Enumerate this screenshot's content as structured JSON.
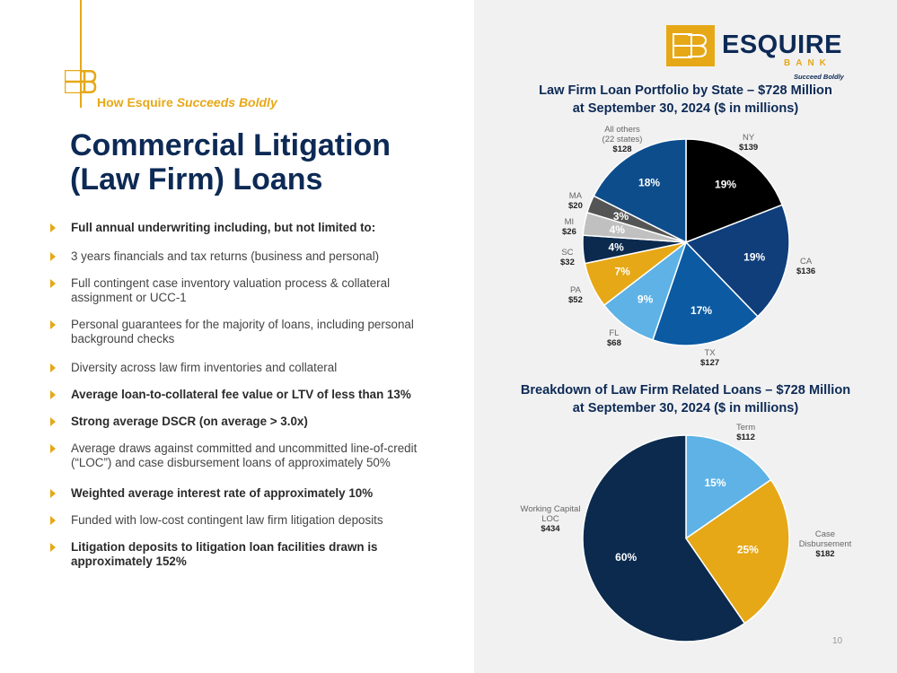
{
  "header": {
    "tagline_plain": "How Esquire ",
    "tagline_italic": "Succeeds Boldly",
    "title_line1": "Commercial Litigation",
    "title_line2": "(Law Firm) Loans"
  },
  "bullets": [
    {
      "text": "Full annual underwriting including, but not limited to:",
      "bold": true
    },
    {
      "text": "3 years financials and tax returns (business and personal)",
      "bold": false
    },
    {
      "text": "Full contingent case inventory valuation process & collateral assignment or UCC-1",
      "bold": false
    },
    {
      "text": "Personal guarantees for the majority of loans, including personal background checks",
      "bold": false
    },
    {
      "text": "Diversity across law firm inventories and collateral",
      "bold": false
    },
    {
      "text": "Average loan-to-collateral fee value or LTV of less than 13%",
      "bold": true
    },
    {
      "text": "Strong average DSCR (on average > 3.0x)",
      "bold": true
    },
    {
      "text": "Average draws against committed and uncommitted line-of-credit (“LOC”) and case disbursement loans of approximately 50%",
      "bold": false
    },
    {
      "text": "Weighted average interest rate of approximately 10%",
      "bold": true
    },
    {
      "text": "Funded with low-cost contingent law firm litigation deposits",
      "bold": false
    },
    {
      "text": "Litigation deposits to litigation loan facilities drawn is approximately 152%",
      "bold": true
    }
  ],
  "logo": {
    "name": "ESQUIRE",
    "sub": "BANK",
    "tagline": "Succeed Boldly"
  },
  "page_number": "10",
  "colors": {
    "navy": "#0d2a55",
    "gold": "#e6a817"
  },
  "chart_data": [
    {
      "type": "pie",
      "title_line1": "Law Firm Loan Portfolio by State – $728 Million",
      "title_line2": "at September 30, 2024 ($ in millions)",
      "slices": [
        {
          "label": "NY",
          "value": 139,
          "value_label": "$139",
          "pct_label": "19%",
          "color": "#000000"
        },
        {
          "label": "CA",
          "value": 136,
          "value_label": "$136",
          "pct_label": "19%",
          "color": "#0f3e7a"
        },
        {
          "label": "TX",
          "value": 127,
          "value_label": "$127",
          "pct_label": "17%",
          "color": "#0b5aa2"
        },
        {
          "label": "FL",
          "value": 68,
          "value_label": "$68",
          "pct_label": "9%",
          "color": "#5eb2e6"
        },
        {
          "label": "PA",
          "value": 52,
          "value_label": "$52",
          "pct_label": "7%",
          "color": "#e6a817"
        },
        {
          "label": "SC",
          "value": 32,
          "value_label": "$32",
          "pct_label": "4%",
          "color": "#0b2a4e"
        },
        {
          "label": "MI",
          "value": 26,
          "value_label": "$26",
          "pct_label": "4%",
          "color": "#c0c0c0"
        },
        {
          "label": "MA",
          "value": 20,
          "value_label": "$20",
          "pct_label": "3%",
          "color": "#555555"
        },
        {
          "label": "All others (22 states)",
          "value": 128,
          "value_label": "$128",
          "pct_label": "18%",
          "color": "#0d4d8c"
        }
      ]
    },
    {
      "type": "pie",
      "title_line1": "Breakdown of Law Firm Related Loans – $728 Million",
      "title_line2": "at September 30, 2024 ($ in millions)",
      "slices": [
        {
          "label": "Term",
          "value": 112,
          "value_label": "$112",
          "pct_label": "15%",
          "color": "#5eb2e6"
        },
        {
          "label": "Case Disbursement",
          "value": 182,
          "value_label": "$182",
          "pct_label": "25%",
          "color": "#e6a817"
        },
        {
          "label": "Working Capital LOC",
          "value": 434,
          "value_label": "$434",
          "pct_label": "60%",
          "color": "#0b2a4e"
        }
      ]
    }
  ]
}
